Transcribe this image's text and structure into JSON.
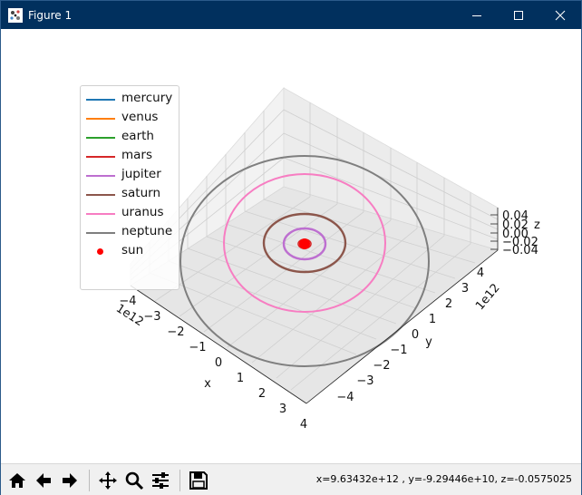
{
  "window": {
    "title": "Figure 1",
    "icon": "matplotlib-figure-icon",
    "controls": [
      "minimize-icon",
      "maximize-icon",
      "close-icon"
    ]
  },
  "legend": [
    {
      "name": "mercury",
      "color": "#1f77b4",
      "marker": "line"
    },
    {
      "name": "venus",
      "color": "#ff7f0e",
      "marker": "line"
    },
    {
      "name": "earth",
      "color": "#2ca02c",
      "marker": "line"
    },
    {
      "name": "mars",
      "color": "#d62728",
      "marker": "line"
    },
    {
      "name": "jupiter",
      "color": "#bd6fd0",
      "marker": "line"
    },
    {
      "name": "saturn",
      "color": "#8c564b",
      "marker": "line"
    },
    {
      "name": "uranus",
      "color": "#f77dc2",
      "marker": "line"
    },
    {
      "name": "neptune",
      "color": "#7f7f7f",
      "marker": "line"
    },
    {
      "name": "sun",
      "color": "#ff0000",
      "marker": "dot"
    }
  ],
  "axes": {
    "x": {
      "label": "x",
      "offset": "1e12",
      "ticks": [
        "−4",
        "−3",
        "−2",
        "−1",
        "0",
        "1",
        "2",
        "3",
        "4"
      ]
    },
    "y": {
      "label": "y",
      "offset": "1e12",
      "ticks": [
        "−4",
        "−3",
        "−2",
        "−1",
        "0",
        "1",
        "2",
        "3",
        "4"
      ]
    },
    "z": {
      "label": "z",
      "ticks": [
        "0.04",
        "0.02",
        "0.00",
        "−0.02",
        "−0.04"
      ]
    }
  },
  "toolbar": {
    "buttons": [
      "home-icon",
      "back-icon",
      "forward-icon",
      "pan-icon",
      "zoom-icon",
      "configure-subplots-icon",
      "save-icon"
    ],
    "status": "x=9.63432e+12 , y=-9.29446e+10, z=-0.0575025"
  }
}
